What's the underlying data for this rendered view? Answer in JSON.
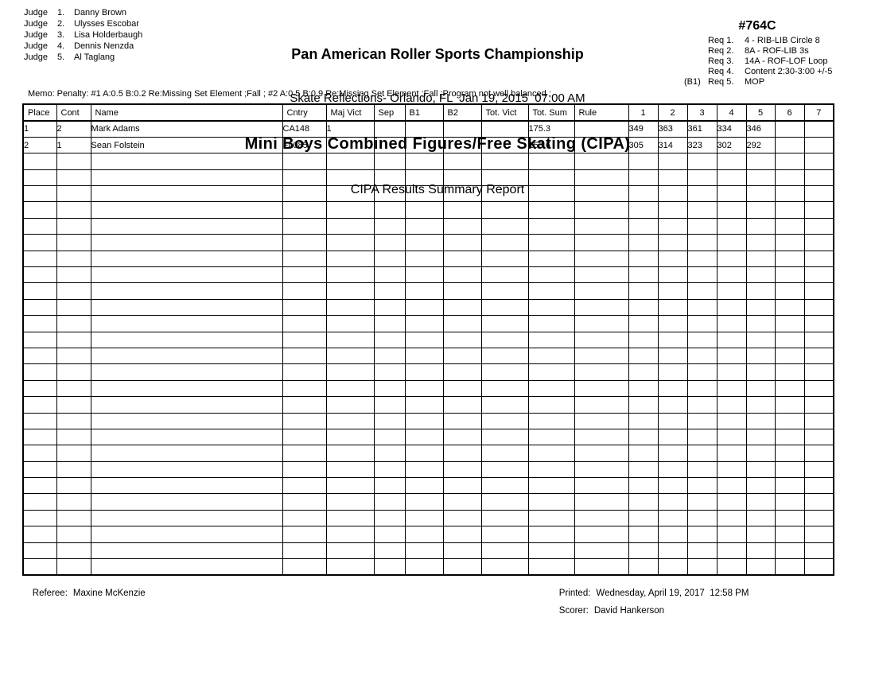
{
  "header": {
    "championship": "Pan American Roller Sports Championship",
    "venue_line": "Skate Reflections- Orlando, FL  Jan 19, 2015  07:00 AM",
    "event_title": "Mini Boys Combined Figures/Free Skating (CIPA)",
    "report_title": "CIPA Results Summary Report",
    "event_number": "#764C"
  },
  "judges": {
    "word": "Judge",
    "list": [
      {
        "num": "1.",
        "name": "Danny Brown"
      },
      {
        "num": "2.",
        "name": "Ulysses Escobar"
      },
      {
        "num": "3.",
        "name": "Lisa Holderbaugh"
      },
      {
        "num": "4.",
        "name": "Dennis Nenzda"
      },
      {
        "num": "5.",
        "name": "Al Taglang"
      }
    ]
  },
  "requirements": [
    {
      "prefix": "",
      "num": "Req 1.",
      "text": "4 - RIB-LIB Circle 8"
    },
    {
      "prefix": "",
      "num": "Req 2.",
      "text": "8A - ROF-LIB 3s"
    },
    {
      "prefix": "",
      "num": "Req 3.",
      "text": "14A - ROF-LOF Loop"
    },
    {
      "prefix": "",
      "num": "Req 4.",
      "text": "Content 2:30-3:00 +/-5"
    },
    {
      "prefix": "(B1)",
      "num": "Req 5.",
      "text": "MOP"
    }
  ],
  "memo": "Memo: Penalty: #1 A:0.5 B:0.2 Re:Missing Set Element ;Fall ; #2 A:0.5 B:0.9 Re:Missing Set Element ;Fall ;Program not well balanced ;",
  "table": {
    "columns": [
      "Place",
      "Cont",
      "Name",
      "Cntry",
      "Maj Vict",
      "Sep",
      "B1",
      "B2",
      "Tot. Vict",
      "Tot. Sum",
      "Rule",
      "1",
      "2",
      "3",
      "4",
      "5",
      "6",
      "7"
    ],
    "rows": [
      {
        "place": "1",
        "cont": "2",
        "name": "Mark Adams",
        "cntry": "CA148",
        "maj_vict": "1",
        "sep": "",
        "b1": "",
        "b2": "",
        "tot_vict": "",
        "tot_sum": "175.3",
        "rule": "",
        "scores": [
          "349",
          "363",
          "361",
          "334",
          "346",
          "",
          ""
        ]
      },
      {
        "place": "2",
        "cont": "1",
        "name": "Sean Folstein",
        "cntry": "FL085",
        "maj_vict": "",
        "sep": "",
        "b1": "",
        "b2": "",
        "tot_vict": "",
        "tot_sum": "153.6",
        "rule": "",
        "scores": [
          "305",
          "314",
          "323",
          "302",
          "292",
          "",
          ""
        ]
      }
    ],
    "empty_rows": 26
  },
  "footer": {
    "referee_label": "Referee:",
    "referee_name": "Maxine McKenzie",
    "printed_label": "Printed:",
    "printed_value": "Wednesday, April 19, 2017  12:58 PM",
    "scorer_label": "Scorer:",
    "scorer_name": "David Hankerson"
  }
}
